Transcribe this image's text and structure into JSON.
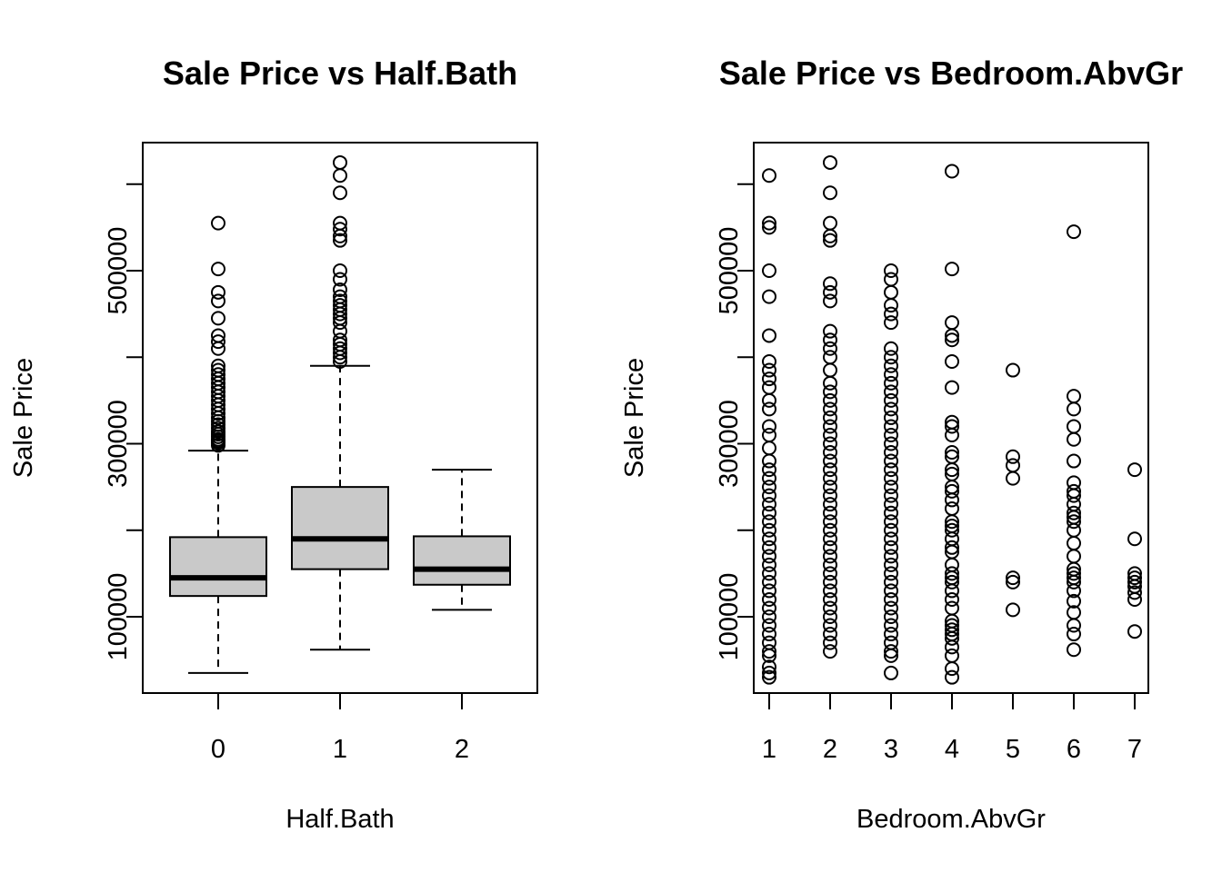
{
  "chart_data": [
    {
      "type": "box",
      "title": "Sale Price vs Half.Bath",
      "xlabel": "Half.Bath",
      "ylabel": "Sale Price",
      "categories": [
        "0",
        "1",
        "2"
      ],
      "ylim": [
        0,
        640000
      ],
      "yticks": [
        100000,
        300000,
        500000
      ],
      "ytick_labels": [
        "100000",
        "300000",
        "500000"
      ],
      "boxes": [
        {
          "label": "0",
          "lower_whisker": 35000,
          "q1": 124000,
          "median": 145000,
          "q3": 192000,
          "upper_whisker": 292000,
          "outliers": [
            298000,
            301000,
            303000,
            305000,
            308000,
            311000,
            314000,
            318000,
            322000,
            326000,
            330000,
            335000,
            340000,
            345000,
            350000,
            355000,
            360000,
            365000,
            370000,
            375000,
            380000,
            385000,
            390000,
            410000,
            418000,
            425000,
            445000,
            465000,
            475000,
            502000,
            555000
          ]
        },
        {
          "label": "1",
          "lower_whisker": 62000,
          "q1": 155000,
          "median": 190000,
          "q3": 250000,
          "upper_whisker": 390000,
          "outliers": [
            395000,
            400000,
            405000,
            410000,
            415000,
            420000,
            430000,
            440000,
            445000,
            450000,
            455000,
            460000,
            465000,
            470000,
            478000,
            490000,
            500000,
            535000,
            540000,
            548000,
            555000,
            590000,
            610000,
            625000
          ]
        },
        {
          "label": "2",
          "lower_whisker": 108000,
          "q1": 137000,
          "median": 155000,
          "q3": 193000,
          "upper_whisker": 270000,
          "outliers": []
        }
      ]
    },
    {
      "type": "scatter",
      "title": "Sale Price vs Bedroom.AbvGr",
      "xlabel": "Bedroom.AbvGr",
      "ylabel": "Sale Price",
      "xticks": [
        1,
        2,
        3,
        4,
        5,
        6,
        7
      ],
      "ylim": [
        0,
        640000
      ],
      "yticks": [
        100000,
        300000,
        500000
      ],
      "ytick_labels": [
        "100000",
        "300000",
        "500000"
      ],
      "points_by_x": [
        {
          "x": 1,
          "y": [
            30000,
            35000,
            42000,
            55000,
            60000,
            70000,
            80000,
            90000,
            100000,
            110000,
            120000,
            130000,
            140000,
            150000,
            160000,
            170000,
            180000,
            190000,
            200000,
            210000,
            220000,
            230000,
            240000,
            250000,
            260000,
            270000,
            280000,
            295000,
            310000,
            320000,
            340000,
            350000,
            365000,
            375000,
            385000,
            395000,
            425000,
            470000,
            500000,
            550000,
            555000,
            610000
          ]
        },
        {
          "x": 2,
          "y": [
            60000,
            70000,
            80000,
            90000,
            100000,
            110000,
            120000,
            130000,
            140000,
            150000,
            160000,
            170000,
            180000,
            190000,
            200000,
            210000,
            220000,
            230000,
            240000,
            250000,
            260000,
            270000,
            280000,
            290000,
            300000,
            310000,
            320000,
            330000,
            340000,
            350000,
            360000,
            370000,
            385000,
            400000,
            410000,
            420000,
            430000,
            465000,
            475000,
            485000,
            535000,
            540000,
            555000,
            590000,
            625000
          ]
        },
        {
          "x": 3,
          "y": [
            35000,
            55000,
            60000,
            70000,
            80000,
            90000,
            100000,
            110000,
            120000,
            130000,
            140000,
            150000,
            160000,
            170000,
            180000,
            190000,
            200000,
            210000,
            220000,
            230000,
            240000,
            250000,
            260000,
            270000,
            280000,
            290000,
            300000,
            310000,
            320000,
            330000,
            340000,
            350000,
            360000,
            370000,
            380000,
            390000,
            400000,
            410000,
            440000,
            450000,
            460000,
            475000,
            490000,
            500000
          ]
        },
        {
          "x": 4,
          "y": [
            30000,
            40000,
            55000,
            65000,
            75000,
            80000,
            85000,
            90000,
            95000,
            110000,
            120000,
            130000,
            140000,
            145000,
            150000,
            160000,
            175000,
            180000,
            190000,
            200000,
            205000,
            210000,
            225000,
            235000,
            245000,
            250000,
            265000,
            270000,
            285000,
            290000,
            310000,
            320000,
            325000,
            365000,
            395000,
            420000,
            425000,
            440000,
            502000,
            615000
          ]
        },
        {
          "x": 5,
          "y": [
            108000,
            140000,
            145000,
            260000,
            275000,
            285000,
            385000
          ]
        },
        {
          "x": 6,
          "y": [
            62000,
            80000,
            90000,
            105000,
            118000,
            130000,
            140000,
            145000,
            150000,
            155000,
            170000,
            185000,
            200000,
            210000,
            215000,
            220000,
            230000,
            240000,
            245000,
            255000,
            280000,
            305000,
            320000,
            340000,
            355000,
            545000
          ]
        },
        {
          "x": 7,
          "y": [
            83000,
            120000,
            128000,
            135000,
            140000,
            145000,
            150000,
            190000,
            270000
          ]
        }
      ]
    }
  ]
}
